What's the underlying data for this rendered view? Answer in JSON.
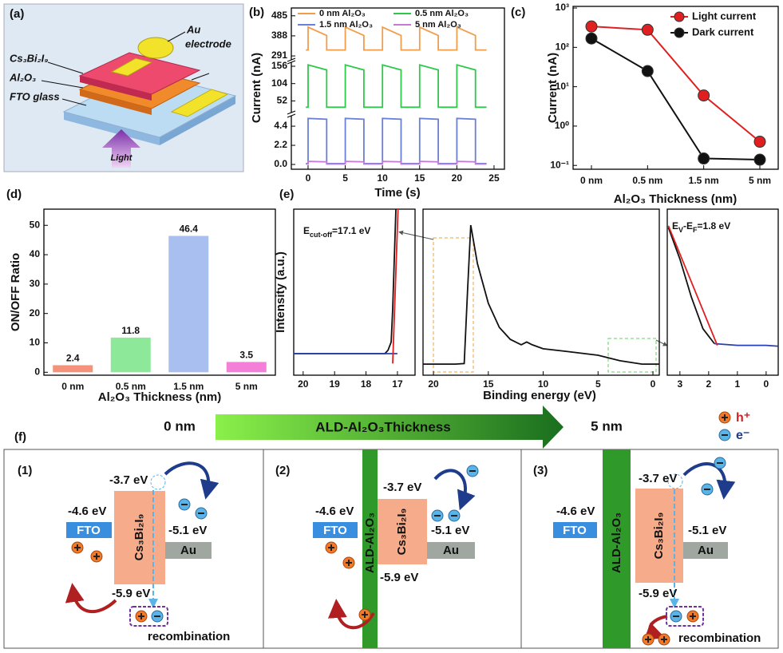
{
  "panel_labels": [
    "(a)",
    "(b)",
    "(c)",
    "(d)",
    "(e)",
    "(f)"
  ],
  "device": {
    "top_contact": "Au",
    "top_contact_2": "electrode",
    "absorber": "Cs₃Bi₂I₉",
    "layer": "Al₂O₃",
    "substrate": "FTO glass",
    "light": "Light"
  },
  "chart_data": [
    {
      "type": "line",
      "xlabel": "Time (s)",
      "ylabel": "Current (nA)",
      "legend": "upper center",
      "xlim": [
        -2.25,
        26.4
      ],
      "xticks": [
        0,
        5,
        10,
        15,
        20,
        25
      ],
      "segments": [
        {
          "ylim": [
            272,
            515
          ],
          "yticks": [
            291,
            388,
            485
          ]
        },
        {
          "ylim": [
            17,
            168
          ],
          "yticks": [
            52,
            104,
            156
          ]
        },
        {
          "ylim": [
            -0.55,
            5.6
          ],
          "yticks": [
            {
              "value": 0,
              "label": "0.0"
            },
            2.2,
            4.4
          ]
        }
      ],
      "x": [
        -0.3,
        0,
        0,
        2.5,
        2.5,
        5,
        5,
        7.5,
        7.5,
        10,
        10,
        12.5,
        12.5,
        15,
        15,
        17.5,
        17.5,
        20,
        20,
        22.5,
        22.5,
        24
      ],
      "series": [
        {
          "name": "0 nm Al₂O₃",
          "color": "#f39c4a",
          "segment": 0,
          "values": [
            320,
            320,
            430,
            390,
            320,
            320,
            430,
            390,
            320,
            320,
            430,
            390,
            320,
            320,
            430,
            390,
            320,
            320,
            430,
            390,
            320,
            320
          ]
        },
        {
          "name": "0.5 nm Al₂O₃",
          "color": "#2ec84a",
          "segment": 1,
          "values": [
            33,
            33,
            160,
            145,
            33,
            33,
            160,
            145,
            33,
            33,
            160,
            145,
            33,
            33,
            160,
            145,
            33,
            33,
            160,
            145,
            33,
            33
          ]
        },
        {
          "name": "1.5 nm Al₂O₃",
          "color": "#6a7fd6",
          "segment": 2,
          "values": [
            0.1,
            0.1,
            5.3,
            5.2,
            0.1,
            0.1,
            5.3,
            5.2,
            0.1,
            0.1,
            5.3,
            5.2,
            0.1,
            0.1,
            5.3,
            5.2,
            0.1,
            0.1,
            5.3,
            5.2,
            0.1,
            0.1
          ]
        },
        {
          "name": "5 nm Al₂O₃",
          "color": "#c57ad6",
          "segment": 2,
          "values": [
            0.05,
            0.05,
            0.35,
            0.3,
            0.05,
            0.05,
            0.35,
            0.3,
            0.05,
            0.05,
            0.35,
            0.3,
            0.05,
            0.05,
            0.35,
            0.3,
            0.05,
            0.05,
            0.35,
            0.3,
            0.05,
            0.05
          ]
        }
      ]
    },
    {
      "type": "line",
      "xlabel": "Al₂O₃ Thickness (nm)",
      "ylabel": "Current (nA)",
      "log_y": true,
      "markers": true,
      "legend": "upper right",
      "categories": [
        "0 nm",
        "0.5 nm",
        "1.5 nm",
        "5 nm"
      ],
      "ylim": [
        0.08,
        1100
      ],
      "yticks": [
        {
          "value": 0.1,
          "label": "10⁻¹"
        },
        {
          "value": 1,
          "label": "10⁰"
        },
        {
          "value": 10,
          "label": "10¹"
        },
        {
          "value": 100,
          "label": "10²"
        },
        {
          "value": 1000,
          "label": "10³"
        }
      ],
      "series": [
        {
          "name": "Light current",
          "color": "#e02020",
          "values": [
            340,
            280,
            6,
            0.4
          ]
        },
        {
          "name": "Dark current",
          "color": "#111111",
          "values": [
            168,
            25,
            0.15,
            0.14
          ]
        }
      ]
    },
    {
      "type": "bar",
      "xlabel": "Al₂O₃ Thickness (nm)",
      "ylabel": "ON/OFF Ratio",
      "categories": [
        "0 nm",
        "0.5 nm",
        "1.5 nm",
        "5 nm"
      ],
      "values": [
        2.4,
        11.8,
        46.4,
        3.5
      ],
      "colors": [
        "#f4937a",
        "#8ee89a",
        "#a9bff0",
        "#f47fd8"
      ],
      "ylim": [
        -1,
        55.5
      ],
      "yticks": [
        0,
        10,
        20,
        30,
        40,
        50
      ]
    },
    {
      "type": "line",
      "ylabel": "Intensity (a.u.)",
      "xlim": [
        20.3,
        16.44
      ],
      "xticks": [
        20,
        19,
        18,
        17
      ],
      "ylim": [
        0,
        1
      ],
      "annotation": [
        {
          "text": "E"
        },
        {
          "text": "cut-off",
          "sub": true
        },
        {
          "text": "=17.1 eV"
        }
      ],
      "series": [
        {
          "color": "#111111",
          "x": [
            20.3,
            17.4,
            17.3,
            17.2,
            17.15,
            17.1,
            17.05
          ],
          "values": [
            0.13,
            0.13,
            0.15,
            0.2,
            0.4,
            0.7,
            1.0
          ]
        },
        {
          "color": "#2a3fb0",
          "x": [
            20.3,
            17.0
          ],
          "values": [
            0.13,
            0.13
          ]
        },
        {
          "color": "#e02020",
          "x": [
            17.15,
            16.98
          ],
          "values": [
            0.07,
            1.0
          ]
        }
      ]
    },
    {
      "type": "line",
      "xlabel": "Binding energy (eV)",
      "xlim": [
        20.95,
        -0.58
      ],
      "xticks": [
        20,
        15,
        10,
        5,
        0
      ],
      "ylim": [
        0,
        1
      ],
      "series": [
        {
          "color": "#111111",
          "x": [
            20.95,
            18,
            17.2,
            16.9,
            16.6,
            16,
            15,
            14,
            13,
            12,
            11.5,
            11,
            10,
            8,
            5,
            3,
            1,
            -0.58
          ],
          "values": [
            0.067,
            0.067,
            0.07,
            0.5,
            0.904,
            0.673,
            0.433,
            0.288,
            0.216,
            0.183,
            0.2,
            0.183,
            0.159,
            0.144,
            0.12,
            0.087,
            0.067,
            0.067
          ]
        }
      ]
    },
    {
      "type": "line",
      "xlim": [
        3.44,
        -0.42
      ],
      "xticks": [
        3,
        2,
        1,
        0
      ],
      "ylim": [
        0,
        1
      ],
      "annotation": [
        {
          "text": "E"
        },
        {
          "text": "V",
          "sub": true
        },
        {
          "text": "-E"
        },
        {
          "text": "F",
          "sub": true
        },
        {
          "text": "=1.8 eV"
        }
      ],
      "series": [
        {
          "color": "#111111",
          "x": [
            3.4,
            3.0,
            2.6,
            2.2,
            1.8
          ],
          "values": [
            0.89,
            0.7,
            0.47,
            0.28,
            0.19
          ]
        },
        {
          "color": "#2a3fb0",
          "x": [
            1.8,
            1,
            0,
            -0.4
          ],
          "values": [
            0.19,
            0.18,
            0.18,
            0.175
          ]
        },
        {
          "color": "#e02020",
          "x": [
            3.4,
            1.7
          ],
          "values": [
            0.9,
            0.18
          ]
        }
      ]
    }
  ],
  "gradient": {
    "start": "0 nm",
    "end": "5 nm",
    "label": "ALD-Al₂O₃Thickness"
  },
  "carrier_legend": {
    "hole": "h⁺",
    "electron": "e⁻"
  },
  "band_diagrams": [
    {
      "label": "(1)",
      "cb": "-3.7 eV",
      "fto_level": "-4.6 eV",
      "au_level": "-5.1 eV",
      "vb": "-5.9 eV",
      "fto": "FTO",
      "absorber": "Cs₃Bi₂I₉",
      "au": "Au",
      "note": "recombination"
    },
    {
      "label": "(2)",
      "cb": "-3.7 eV",
      "fto_level": "-4.6 eV",
      "au_level": "-5.1 eV",
      "vb": "-5.9 eV",
      "fto": "FTO",
      "absorber": "Cs₃Bi₂I₉",
      "au": "Au",
      "barrier": "ALD-Al₂O₃"
    },
    {
      "label": "(3)",
      "cb": "-3.7 eV",
      "fto_level": "-4.6 eV",
      "au_level": "-5.1 eV",
      "vb": "-5.9 eV",
      "fto": "FTO",
      "absorber": "Cs₃Bi₂I₉",
      "au": "Au",
      "barrier": "ALD-Al₂O₃",
      "note": "recombination"
    }
  ]
}
